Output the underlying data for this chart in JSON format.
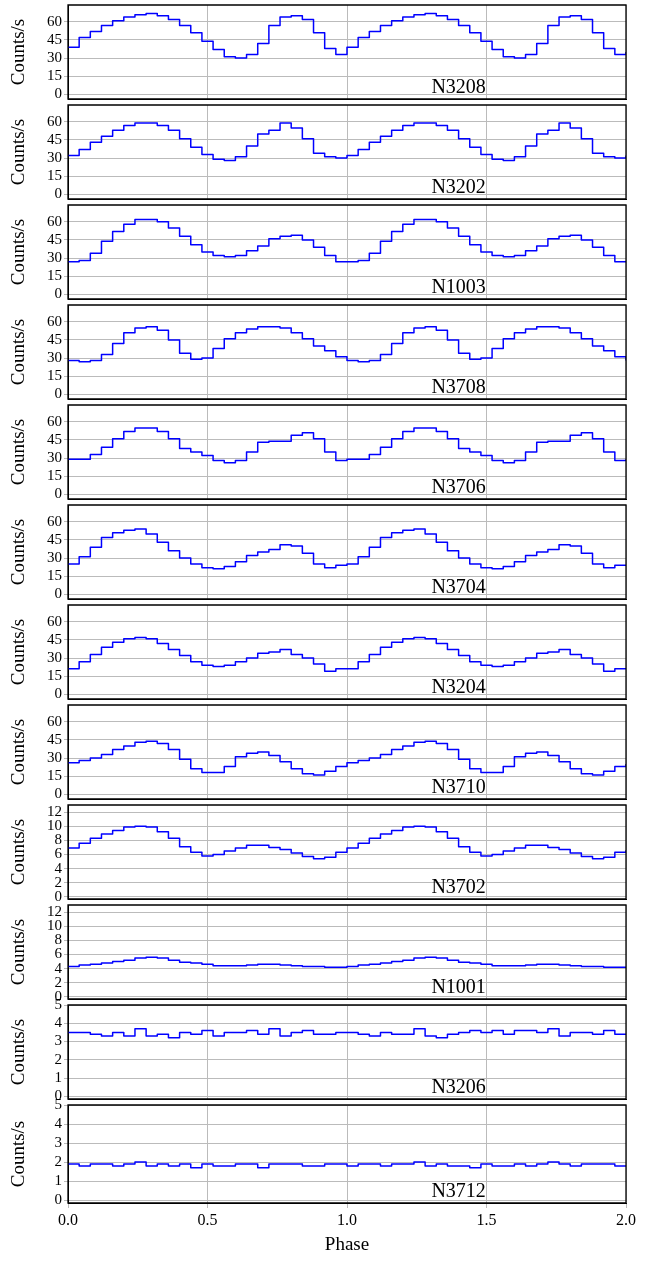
{
  "chart_data": [
    {
      "type": "step",
      "x": [
        0,
        0.04,
        0.08,
        0.12,
        0.16,
        0.2,
        0.24,
        0.28,
        0.32,
        0.36,
        0.4,
        0.44,
        0.48,
        0.52,
        0.56,
        0.6,
        0.64,
        0.68,
        0.72,
        0.76,
        0.8,
        0.84,
        0.88,
        0.92,
        0.96,
        1,
        1.04,
        1.08,
        1.12,
        1.16,
        1.2,
        1.24,
        1.28,
        1.32,
        1.36,
        1.4,
        1.44,
        1.48,
        1.52,
        1.56,
        1.6,
        1.64,
        1.68,
        1.72,
        1.76,
        1.8,
        1.84,
        1.88,
        1.92,
        1.96,
        2
      ],
      "xlim": [
        0,
        2
      ],
      "ylim": [
        -4,
        74
      ],
      "yticks": [
        0,
        15,
        30,
        45,
        60
      ],
      "ylabel": "Counts/s",
      "grid": true,
      "tick_labels": "y",
      "annotations": [
        "N3208"
      ],
      "series": [
        {
          "color": "#0000ff",
          "values": [
            39,
            47,
            52,
            57,
            61,
            64,
            66,
            67,
            65,
            62,
            57,
            51,
            44,
            37,
            31,
            30,
            33,
            42,
            57,
            64,
            65,
            62,
            51,
            38,
            33,
            39,
            47,
            52,
            57,
            61,
            64,
            66,
            67,
            65,
            62,
            57,
            51,
            44,
            37,
            31,
            30,
            33,
            42,
            57,
            64,
            65,
            62,
            51,
            38,
            33,
            35
          ]
        }
      ]
    },
    {
      "type": "step",
      "x": [
        0,
        0.04,
        0.08,
        0.12,
        0.16,
        0.2,
        0.24,
        0.28,
        0.32,
        0.36,
        0.4,
        0.44,
        0.48,
        0.52,
        0.56,
        0.6,
        0.64,
        0.68,
        0.72,
        0.76,
        0.8,
        0.84,
        0.88,
        0.92,
        0.96,
        1,
        1.04,
        1.08,
        1.12,
        1.16,
        1.2,
        1.24,
        1.28,
        1.32,
        1.36,
        1.4,
        1.44,
        1.48,
        1.52,
        1.56,
        1.6,
        1.64,
        1.68,
        1.72,
        1.76,
        1.8,
        1.84,
        1.88,
        1.92,
        1.96,
        2
      ],
      "xlim": [
        0,
        2
      ],
      "ylim": [
        -4,
        74
      ],
      "yticks": [
        0,
        15,
        30,
        45,
        60
      ],
      "ylabel": "Counts/s",
      "grid": true,
      "tick_labels": "y",
      "annotations": [
        "N3202"
      ],
      "series": [
        {
          "color": "#0000ff",
          "values": [
            32,
            37,
            43,
            48,
            53,
            57,
            59,
            59,
            57,
            53,
            46,
            39,
            33,
            29,
            28,
            31,
            40,
            50,
            53,
            59,
            55,
            46,
            34,
            31,
            30,
            32,
            37,
            43,
            48,
            53,
            57,
            59,
            59,
            57,
            53,
            46,
            39,
            33,
            29,
            28,
            31,
            40,
            50,
            53,
            59,
            55,
            46,
            34,
            31,
            30,
            32
          ]
        }
      ]
    },
    {
      "type": "step",
      "x": [
        0,
        0.04,
        0.08,
        0.12,
        0.16,
        0.2,
        0.24,
        0.28,
        0.32,
        0.36,
        0.4,
        0.44,
        0.48,
        0.52,
        0.56,
        0.6,
        0.64,
        0.68,
        0.72,
        0.76,
        0.8,
        0.84,
        0.88,
        0.92,
        0.96,
        1,
        1.04,
        1.08,
        1.12,
        1.16,
        1.2,
        1.24,
        1.28,
        1.32,
        1.36,
        1.4,
        1.44,
        1.48,
        1.52,
        1.56,
        1.6,
        1.64,
        1.68,
        1.72,
        1.76,
        1.8,
        1.84,
        1.88,
        1.92,
        1.96,
        2
      ],
      "xlim": [
        0,
        2
      ],
      "ylim": [
        -4,
        74
      ],
      "yticks": [
        0,
        15,
        30,
        45,
        60
      ],
      "ylabel": "Counts/s",
      "grid": true,
      "tick_labels": "y",
      "annotations": [
        "N1003"
      ],
      "series": [
        {
          "color": "#0000ff",
          "values": [
            27,
            28,
            34,
            44,
            52,
            58,
            62,
            62,
            60,
            55,
            48,
            41,
            35,
            32,
            31,
            32,
            36,
            40,
            46,
            48,
            49,
            45,
            39,
            32,
            27,
            27,
            28,
            34,
            44,
            52,
            58,
            62,
            62,
            60,
            55,
            48,
            41,
            35,
            32,
            31,
            32,
            36,
            40,
            46,
            48,
            49,
            45,
            39,
            32,
            27,
            27
          ]
        }
      ]
    },
    {
      "type": "step",
      "x": [
        0,
        0.04,
        0.08,
        0.12,
        0.16,
        0.2,
        0.24,
        0.28,
        0.32,
        0.36,
        0.4,
        0.44,
        0.48,
        0.52,
        0.56,
        0.6,
        0.64,
        0.68,
        0.72,
        0.76,
        0.8,
        0.84,
        0.88,
        0.92,
        0.96,
        1,
        1.04,
        1.08,
        1.12,
        1.16,
        1.2,
        1.24,
        1.28,
        1.32,
        1.36,
        1.4,
        1.44,
        1.48,
        1.52,
        1.56,
        1.6,
        1.64,
        1.68,
        1.72,
        1.76,
        1.8,
        1.84,
        1.88,
        1.92,
        1.96,
        2
      ],
      "xlim": [
        0,
        2
      ],
      "ylim": [
        -4,
        74
      ],
      "yticks": [
        0,
        15,
        30,
        45,
        60
      ],
      "ylabel": "Counts/s",
      "grid": true,
      "tick_labels": "y",
      "annotations": [
        "N3708"
      ],
      "series": [
        {
          "color": "#0000ff",
          "values": [
            28,
            27,
            28,
            33,
            42,
            51,
            55,
            56,
            53,
            45,
            34,
            29,
            30,
            38,
            46,
            51,
            54,
            56,
            56,
            55,
            51,
            46,
            40,
            36,
            31,
            28,
            27,
            28,
            33,
            42,
            51,
            55,
            56,
            53,
            45,
            34,
            29,
            30,
            38,
            46,
            51,
            54,
            56,
            56,
            55,
            51,
            46,
            40,
            36,
            31,
            28
          ]
        }
      ]
    },
    {
      "type": "step",
      "x": [
        0,
        0.04,
        0.08,
        0.12,
        0.16,
        0.2,
        0.24,
        0.28,
        0.32,
        0.36,
        0.4,
        0.44,
        0.48,
        0.52,
        0.56,
        0.6,
        0.64,
        0.68,
        0.72,
        0.76,
        0.8,
        0.84,
        0.88,
        0.92,
        0.96,
        1,
        1.04,
        1.08,
        1.12,
        1.16,
        1.2,
        1.24,
        1.28,
        1.32,
        1.36,
        1.4,
        1.44,
        1.48,
        1.52,
        1.56,
        1.6,
        1.64,
        1.68,
        1.72,
        1.76,
        1.8,
        1.84,
        1.88,
        1.92,
        1.96,
        2
      ],
      "xlim": [
        0,
        2
      ],
      "ylim": [
        -4,
        74
      ],
      "yticks": [
        0,
        15,
        30,
        45,
        60
      ],
      "ylabel": "Counts/s",
      "grid": true,
      "tick_labels": "y",
      "annotations": [
        "N3706"
      ],
      "series": [
        {
          "color": "#0000ff",
          "values": [
            29,
            29,
            33,
            39,
            46,
            52,
            55,
            55,
            52,
            46,
            38,
            35,
            32,
            28,
            26,
            28,
            35,
            43,
            44,
            44,
            49,
            51,
            46,
            35,
            28,
            29,
            29,
            33,
            39,
            46,
            52,
            55,
            55,
            52,
            46,
            38,
            35,
            32,
            28,
            26,
            28,
            35,
            43,
            44,
            44,
            49,
            51,
            46,
            35,
            28,
            29
          ]
        }
      ]
    },
    {
      "type": "step",
      "x": [
        0,
        0.04,
        0.08,
        0.12,
        0.16,
        0.2,
        0.24,
        0.28,
        0.32,
        0.36,
        0.4,
        0.44,
        0.48,
        0.52,
        0.56,
        0.6,
        0.64,
        0.68,
        0.72,
        0.76,
        0.8,
        0.84,
        0.88,
        0.92,
        0.96,
        1,
        1.04,
        1.08,
        1.12,
        1.16,
        1.2,
        1.24,
        1.28,
        1.32,
        1.36,
        1.4,
        1.44,
        1.48,
        1.52,
        1.56,
        1.6,
        1.64,
        1.68,
        1.72,
        1.76,
        1.8,
        1.84,
        1.88,
        1.92,
        1.96,
        2
      ],
      "xlim": [
        0,
        2
      ],
      "ylim": [
        -4,
        74
      ],
      "yticks": [
        0,
        15,
        30,
        45,
        60
      ],
      "ylabel": "Counts/s",
      "grid": true,
      "tick_labels": "y",
      "annotations": [
        "N3704"
      ],
      "series": [
        {
          "color": "#0000ff",
          "values": [
            25,
            31,
            39,
            47,
            51,
            53,
            54,
            50,
            43,
            36,
            30,
            25,
            22,
            21,
            23,
            27,
            32,
            35,
            37,
            41,
            40,
            34,
            25,
            22,
            24,
            25,
            31,
            39,
            47,
            51,
            53,
            54,
            50,
            43,
            36,
            30,
            25,
            22,
            21,
            23,
            27,
            32,
            35,
            37,
            41,
            40,
            34,
            25,
            22,
            24,
            24
          ]
        }
      ]
    },
    {
      "type": "step",
      "x": [
        0,
        0.04,
        0.08,
        0.12,
        0.16,
        0.2,
        0.24,
        0.28,
        0.32,
        0.36,
        0.4,
        0.44,
        0.48,
        0.52,
        0.56,
        0.6,
        0.64,
        0.68,
        0.72,
        0.76,
        0.8,
        0.84,
        0.88,
        0.92,
        0.96,
        1,
        1.04,
        1.08,
        1.12,
        1.16,
        1.2,
        1.24,
        1.28,
        1.32,
        1.36,
        1.4,
        1.44,
        1.48,
        1.52,
        1.56,
        1.6,
        1.64,
        1.68,
        1.72,
        1.76,
        1.8,
        1.84,
        1.88,
        1.92,
        1.96,
        2
      ],
      "xlim": [
        0,
        2
      ],
      "ylim": [
        -4,
        74
      ],
      "yticks": [
        0,
        15,
        30,
        45,
        60
      ],
      "ylabel": "Counts/s",
      "grid": true,
      "tick_labels": "y",
      "annotations": [
        "N3204"
      ],
      "series": [
        {
          "color": "#0000ff",
          "values": [
            21,
            27,
            33,
            39,
            43,
            46,
            47,
            46,
            42,
            37,
            32,
            27,
            24,
            23,
            24,
            27,
            30,
            34,
            35,
            37,
            33,
            30,
            25,
            19,
            21,
            21,
            27,
            33,
            39,
            43,
            46,
            47,
            46,
            42,
            37,
            32,
            27,
            24,
            23,
            24,
            27,
            30,
            34,
            35,
            37,
            33,
            30,
            25,
            19,
            21,
            21
          ]
        }
      ]
    },
    {
      "type": "step",
      "x": [
        0,
        0.04,
        0.08,
        0.12,
        0.16,
        0.2,
        0.24,
        0.28,
        0.32,
        0.36,
        0.4,
        0.44,
        0.48,
        0.52,
        0.56,
        0.6,
        0.64,
        0.68,
        0.72,
        0.76,
        0.8,
        0.84,
        0.88,
        0.92,
        0.96,
        1,
        1.04,
        1.08,
        1.12,
        1.16,
        1.2,
        1.24,
        1.28,
        1.32,
        1.36,
        1.4,
        1.44,
        1.48,
        1.52,
        1.56,
        1.6,
        1.64,
        1.68,
        1.72,
        1.76,
        1.8,
        1.84,
        1.88,
        1.92,
        1.96,
        2
      ],
      "xlim": [
        0,
        2
      ],
      "ylim": [
        -4,
        74
      ],
      "yticks": [
        0,
        15,
        30,
        45,
        60
      ],
      "ylabel": "Counts/s",
      "grid": true,
      "tick_labels": "y",
      "annotations": [
        "N3710"
      ],
      "series": [
        {
          "color": "#0000ff",
          "values": [
            26,
            28,
            30,
            33,
            37,
            40,
            43,
            44,
            42,
            37,
            29,
            21,
            18,
            18,
            23,
            31,
            34,
            35,
            32,
            27,
            21,
            17,
            16,
            19,
            23,
            26,
            28,
            30,
            33,
            37,
            40,
            43,
            44,
            42,
            37,
            29,
            21,
            18,
            18,
            23,
            31,
            34,
            35,
            32,
            27,
            21,
            17,
            16,
            19,
            23,
            25
          ]
        }
      ]
    },
    {
      "type": "step",
      "x": [
        0,
        0.04,
        0.08,
        0.12,
        0.16,
        0.2,
        0.24,
        0.28,
        0.32,
        0.36,
        0.4,
        0.44,
        0.48,
        0.52,
        0.56,
        0.6,
        0.64,
        0.68,
        0.72,
        0.76,
        0.8,
        0.84,
        0.88,
        0.92,
        0.96,
        1,
        1.04,
        1.08,
        1.12,
        1.16,
        1.2,
        1.24,
        1.28,
        1.32,
        1.36,
        1.4,
        1.44,
        1.48,
        1.52,
        1.56,
        1.6,
        1.64,
        1.68,
        1.72,
        1.76,
        1.8,
        1.84,
        1.88,
        1.92,
        1.96,
        2
      ],
      "xlim": [
        0,
        2
      ],
      "ylim": [
        -0.3,
        13
      ],
      "yticks": [
        0,
        2,
        4,
        6,
        8,
        10,
        12
      ],
      "ylabel": "Counts/s",
      "grid": true,
      "tick_labels": "y",
      "annotations": [
        "N3702"
      ],
      "series": [
        {
          "color": "#0000ff",
          "values": [
            6.9,
            7.6,
            8.3,
            8.9,
            9.4,
            9.9,
            10,
            9.9,
            9.2,
            8.3,
            7.1,
            6.3,
            5.8,
            6,
            6.5,
            6.9,
            7.3,
            7.3,
            7,
            6.7,
            6.2,
            5.7,
            5.4,
            5.6,
            6.3,
            6.9,
            7.6,
            8.3,
            8.9,
            9.4,
            9.9,
            10,
            9.9,
            9.2,
            8.3,
            7.1,
            6.3,
            5.8,
            6,
            6.5,
            6.9,
            7.3,
            7.3,
            7,
            6.7,
            6.2,
            5.7,
            5.4,
            5.6,
            6.3,
            6.6
          ]
        }
      ]
    },
    {
      "type": "step",
      "x": [
        0,
        0.04,
        0.08,
        0.12,
        0.16,
        0.2,
        0.24,
        0.28,
        0.32,
        0.36,
        0.4,
        0.44,
        0.48,
        0.52,
        0.56,
        0.6,
        0.64,
        0.68,
        0.72,
        0.76,
        0.8,
        0.84,
        0.88,
        0.92,
        0.96,
        1,
        1.04,
        1.08,
        1.12,
        1.16,
        1.2,
        1.24,
        1.28,
        1.32,
        1.36,
        1.4,
        1.44,
        1.48,
        1.52,
        1.56,
        1.6,
        1.64,
        1.68,
        1.72,
        1.76,
        1.8,
        1.84,
        1.88,
        1.92,
        1.96,
        2
      ],
      "xlim": [
        0,
        2
      ],
      "ylim": [
        -0.3,
        13
      ],
      "yticks": [
        0,
        2,
        4,
        6,
        8,
        10,
        12
      ],
      "ylabel": "Counts/s",
      "grid": true,
      "tick_labels": "y",
      "annotations": [
        "N1001"
      ],
      "series": [
        {
          "color": "#0000ff",
          "values": [
            4.3,
            4.5,
            4.6,
            4.8,
            5,
            5.2,
            5.5,
            5.6,
            5.5,
            5.2,
            4.9,
            4.8,
            4.6,
            4.4,
            4.4,
            4.4,
            4.5,
            4.6,
            4.6,
            4.5,
            4.4,
            4.3,
            4.3,
            4.2,
            4.2,
            4.3,
            4.5,
            4.6,
            4.8,
            5,
            5.2,
            5.5,
            5.6,
            5.5,
            5.2,
            4.9,
            4.8,
            4.6,
            4.4,
            4.4,
            4.4,
            4.5,
            4.6,
            4.6,
            4.5,
            4.4,
            4.3,
            4.3,
            4.2,
            4.2,
            4.2
          ]
        }
      ]
    },
    {
      "type": "step",
      "x": [
        0,
        0.04,
        0.08,
        0.12,
        0.16,
        0.2,
        0.24,
        0.28,
        0.32,
        0.36,
        0.4,
        0.44,
        0.48,
        0.52,
        0.56,
        0.6,
        0.64,
        0.68,
        0.72,
        0.76,
        0.8,
        0.84,
        0.88,
        0.92,
        0.96,
        1,
        1.04,
        1.08,
        1.12,
        1.16,
        1.2,
        1.24,
        1.28,
        1.32,
        1.36,
        1.4,
        1.44,
        1.48,
        1.52,
        1.56,
        1.6,
        1.64,
        1.68,
        1.72,
        1.76,
        1.8,
        1.84,
        1.88,
        1.92,
        1.96,
        2
      ],
      "xlim": [
        0,
        2
      ],
      "ylim": [
        -0.15,
        5
      ],
      "yticks": [
        0,
        1,
        2,
        3,
        4,
        5
      ],
      "ylabel": "Counts/s",
      "grid": true,
      "tick_labels": "y",
      "annotations": [
        "N3206"
      ],
      "series": [
        {
          "color": "#0000ff",
          "values": [
            3.5,
            3.5,
            3.4,
            3.3,
            3.5,
            3.3,
            3.7,
            3.3,
            3.4,
            3.2,
            3.5,
            3.4,
            3.6,
            3.3,
            3.5,
            3.5,
            3.6,
            3.4,
            3.7,
            3.3,
            3.5,
            3.6,
            3.4,
            3.4,
            3.5,
            3.5,
            3.4,
            3.3,
            3.5,
            3.4,
            3.4,
            3.7,
            3.3,
            3.2,
            3.4,
            3.5,
            3.6,
            3.5,
            3.6,
            3.4,
            3.6,
            3.6,
            3.5,
            3.7,
            3.3,
            3.5,
            3.5,
            3.4,
            3.6,
            3.4,
            3.4
          ]
        }
      ]
    },
    {
      "type": "step",
      "x": [
        0,
        0.04,
        0.08,
        0.12,
        0.16,
        0.2,
        0.24,
        0.28,
        0.32,
        0.36,
        0.4,
        0.44,
        0.48,
        0.52,
        0.56,
        0.6,
        0.64,
        0.68,
        0.72,
        0.76,
        0.8,
        0.84,
        0.88,
        0.92,
        0.96,
        1,
        1.04,
        1.08,
        1.12,
        1.16,
        1.2,
        1.24,
        1.28,
        1.32,
        1.36,
        1.4,
        1.44,
        1.48,
        1.52,
        1.56,
        1.6,
        1.64,
        1.68,
        1.72,
        1.76,
        1.8,
        1.84,
        1.88,
        1.92,
        1.96,
        2
      ],
      "xlim": [
        0,
        2
      ],
      "xticks": [
        {
          "value": 0,
          "label": "0.0"
        },
        0.5,
        {
          "value": 1,
          "label": "1.0"
        },
        1.5,
        {
          "value": 2,
          "label": "2.0"
        }
      ],
      "ylim": [
        -0.15,
        5
      ],
      "yticks": [
        0,
        1,
        2,
        3,
        4,
        5
      ],
      "ylabel": "Counts/s",
      "xlabel": "Phase",
      "grid": true,
      "annotations": [
        "N3712"
      ],
      "series": [
        {
          "color": "#0000ff",
          "values": [
            1.9,
            1.8,
            1.9,
            1.9,
            1.8,
            1.9,
            2,
            1.8,
            1.9,
            1.8,
            1.9,
            1.7,
            1.9,
            1.8,
            1.8,
            1.9,
            1.9,
            1.7,
            1.9,
            1.9,
            1.9,
            1.8,
            1.8,
            1.9,
            1.9,
            1.8,
            1.9,
            1.9,
            1.8,
            1.9,
            1.9,
            2,
            1.8,
            1.9,
            1.8,
            1.8,
            1.7,
            1.9,
            1.8,
            1.8,
            1.9,
            1.8,
            1.9,
            2,
            1.9,
            1.8,
            1.9,
            1.9,
            1.9,
            1.8,
            1.8
          ]
        }
      ]
    }
  ]
}
